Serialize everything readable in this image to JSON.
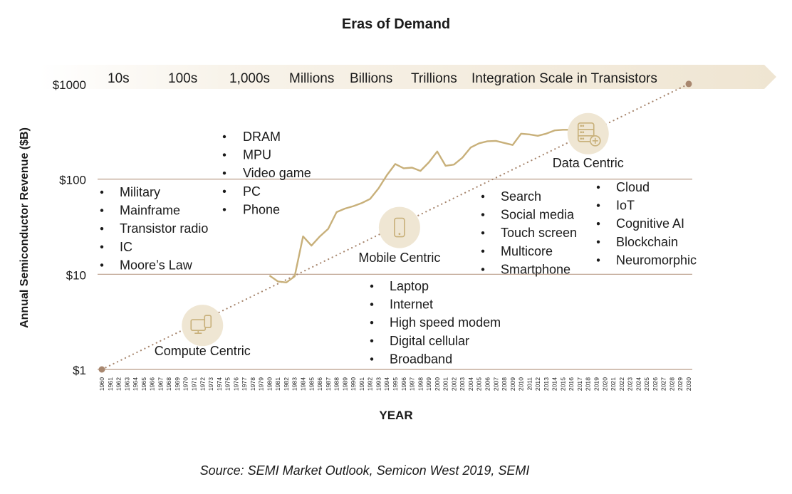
{
  "chart_data": {
    "type": "line",
    "title": "Eras of Demand",
    "xlabel": "YEAR",
    "ylabel": "Annual Semiconductor Revenue ($B)",
    "y_scale": "log",
    "ylim": [
      1,
      1000
    ],
    "xlim": [
      1960,
      2030
    ],
    "y_ticks": [
      "$1",
      "$10",
      "$100",
      "$1000"
    ],
    "y_tick_values": [
      1,
      10,
      100,
      1000
    ],
    "x_ticks": [
      "1960",
      "1961",
      "1962",
      "1963",
      "1964",
      "1965",
      "1966",
      "1967",
      "1968",
      "1969",
      "1970",
      "1971",
      "1972",
      "1973",
      "1974",
      "1975",
      "1976",
      "1977",
      "1978",
      "1979",
      "1980",
      "1981",
      "1982",
      "1983",
      "1984",
      "1985",
      "1986",
      "1987",
      "1988",
      "1989",
      "1990",
      "1991",
      "1992",
      "1993",
      "1994",
      "1995",
      "1996",
      "1997",
      "1998",
      "1999",
      "2000",
      "2001",
      "2002",
      "2003",
      "2004",
      "2005",
      "2006",
      "2007",
      "2008",
      "2009",
      "2010",
      "2011",
      "2012",
      "2013",
      "2014",
      "2015",
      "2016",
      "2017",
      "2018",
      "2019",
      "2020",
      "2021",
      "2022",
      "2023",
      "2024",
      "2025",
      "2026",
      "2027",
      "2028",
      "2029",
      "2030"
    ],
    "grid": "horizontal",
    "series": [
      {
        "style": "solid",
        "color": "#c8b07a",
        "x": [
          1980,
          1981,
          1982,
          1983,
          1984,
          1985,
          1986,
          1987,
          1988,
          1989,
          1990,
          1991,
          1992,
          1993,
          1994,
          1995,
          1996,
          1997,
          1998,
          1999,
          2000,
          2001,
          2002,
          2003,
          2004,
          2005,
          2006,
          2007,
          2008,
          2009,
          2010,
          2011,
          2012,
          2013,
          2014,
          2015,
          2016,
          2017
        ],
        "y": [
          9.7,
          8.4,
          8.2,
          9.5,
          25,
          20,
          25,
          30,
          45,
          49,
          52,
          56,
          62,
          80,
          110,
          144,
          130,
          132,
          122,
          150,
          195,
          138,
          142,
          168,
          215,
          238,
          250,
          252,
          240,
          228,
          300,
          295,
          285,
          300,
          325,
          330,
          330,
          340
        ]
      },
      {
        "style": "dotted",
        "color": "#a8876f",
        "x": [
          1960,
          2030
        ],
        "y": [
          1,
          1000
        ]
      }
    ],
    "eras": [
      {
        "label": "Compute Centric",
        "icon": "desktop-phone-icon",
        "year": 1972,
        "value": 2.9
      },
      {
        "label": "Mobile Centric",
        "icon": "smartphone-icon",
        "year": 1995.5,
        "value": 31
      },
      {
        "label": "Data Centric",
        "icon": "server-add-icon",
        "year": 2018,
        "value": 300
      }
    ],
    "banner": {
      "items": [
        "10s",
        "100s",
        "1,000s",
        "Millions",
        "Billions",
        "Trillions",
        "Integration Scale in Transistors"
      ],
      "color": "#f0e6d4"
    },
    "annotations": [
      {
        "items": [
          "Military",
          "Mainframe",
          "Transistor radio",
          "IC",
          "Moore’s Law"
        ]
      },
      {
        "items": [
          "DRAM",
          "MPU",
          "Video game",
          "PC",
          "Phone"
        ]
      },
      {
        "items": [
          "Laptop",
          "Internet",
          "High speed modem",
          "Digital cellular",
          "Broadband"
        ]
      },
      {
        "items": [
          "Search",
          "Social media",
          "Touch screen",
          "Multicore",
          "Smartphone"
        ]
      },
      {
        "items": [
          "Cloud",
          "IoT",
          "Cognitive AI",
          "Blockchain",
          "Neuromorphic"
        ]
      }
    ],
    "source": "Source: SEMI Market Outlook, Semicon West 2019, SEMI",
    "colors": {
      "grid": "#b99c88",
      "circle": "#efe6d3",
      "icon": "#c8b07a"
    }
  }
}
